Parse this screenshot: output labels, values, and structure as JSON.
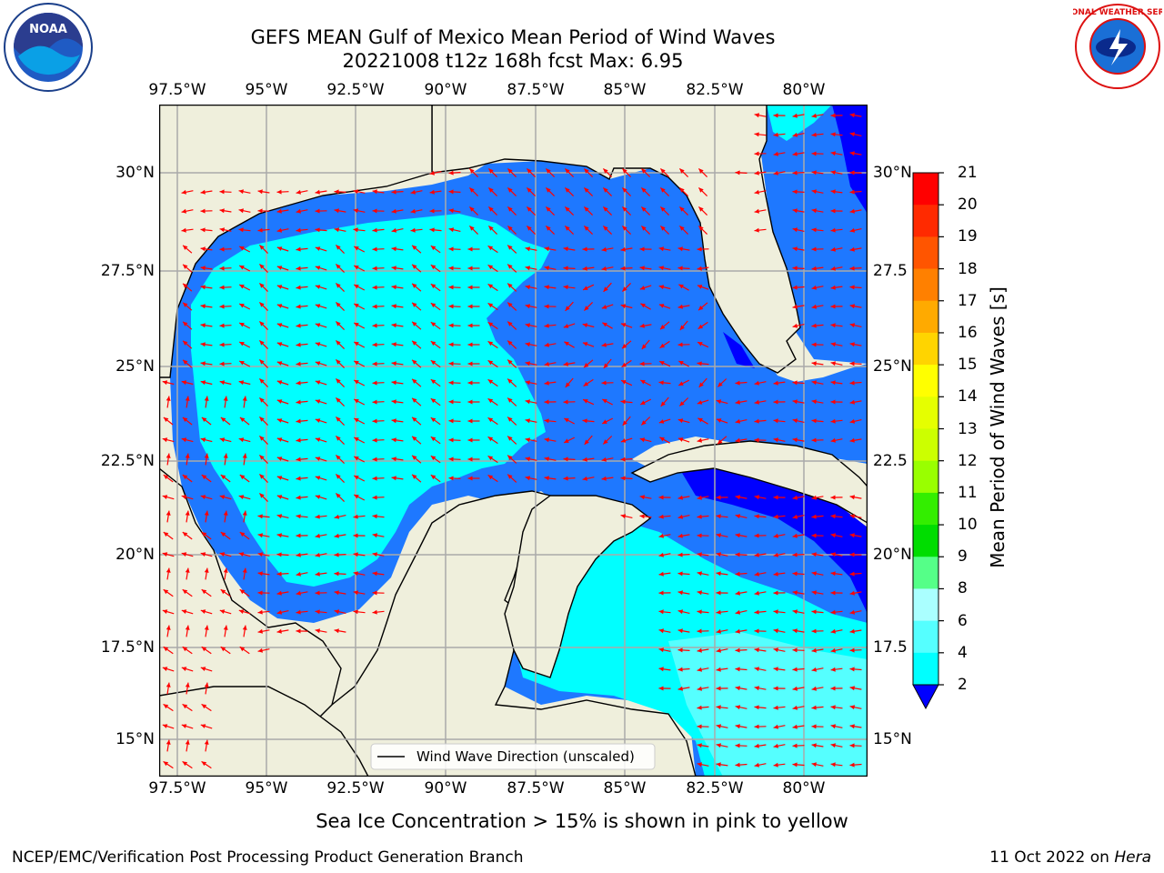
{
  "title_line1": "GEFS MEAN Gulf of Mexico Mean Period of Wind Waves",
  "title_line2": "20221008 t12z 168h fcst   Max: 6.95",
  "lon_labels": [
    "97.5°W",
    "95°W",
    "92.5°W",
    "90°W",
    "87.5°W",
    "85°W",
    "82.5°W",
    "80°W"
  ],
  "lat_labels_left": [
    "30°N",
    "27.5°N",
    "25°N",
    "22.5°N",
    "20°N",
    "17.5°N",
    "15°N"
  ],
  "lat_labels_right": [
    "30°N",
    "27.5",
    "25°N",
    "22.5",
    "20°N",
    "17.5",
    "15°N"
  ],
  "legend_label": "Wind Wave Direction (unscaled)",
  "colorbar": {
    "title": "Mean Period of Wind Waves [s]",
    "ticks": [
      "21",
      "20",
      "19",
      "18",
      "17",
      "16",
      "15",
      "14",
      "13",
      "12",
      "11",
      "10",
      "9",
      "8",
      "6",
      "4",
      "2"
    ],
    "colors": [
      "#ff0000",
      "#ff2a00",
      "#ff5500",
      "#ff8000",
      "#ffaa00",
      "#ffd400",
      "#ffff00",
      "#e5ff00",
      "#ccff00",
      "#99ff00",
      "#33ee00",
      "#00dd00",
      "#55ff88",
      "#aaffff",
      "#55ffff",
      "#00ffff",
      "#0080ff",
      "#0000ff"
    ]
  },
  "colors": {
    "land": "#efefdc",
    "ocean_deep": "#0000ff",
    "ocean_blue": "#1e78ff",
    "ocean_cyan": "#00ffff",
    "ocean_light": "#55ffff",
    "arrow": "#ff0000",
    "grid": "#aaaaaa"
  },
  "note": "Sea Ice Concentration > 15% is shown in pink to yellow",
  "footer_left": "NCEP/EMC/Verification Post Processing Product Generation Branch",
  "footer_right_date": "11 Oct 2022 on",
  "footer_right_host": "Hera",
  "logos": {
    "left": "NOAA",
    "right": "NATIONAL WEATHER SERVICE"
  }
}
